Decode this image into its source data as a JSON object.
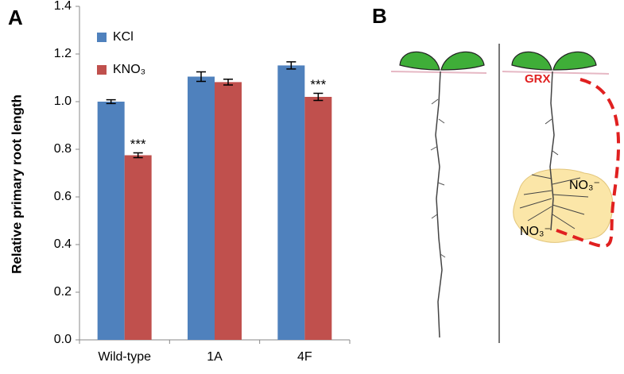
{
  "panels": [
    "A",
    "B"
  ],
  "chart_data": {
    "type": "bar",
    "y_label": "Relative primary root length",
    "categories": [
      "Wild-type",
      "1A",
      "4F"
    ],
    "series": [
      {
        "name": "KCl",
        "color": "#4f81bd",
        "values": [
          1.0,
          1.105,
          1.152
        ],
        "errors": [
          0.008,
          0.02,
          0.015
        ]
      },
      {
        "name": "KNO₃",
        "color": "#c0504d",
        "values": [
          0.775,
          1.082,
          1.02
        ],
        "errors": [
          0.01,
          0.012,
          0.015
        ]
      }
    ],
    "annotations": [
      {
        "text": "***",
        "category": "Wild-type",
        "series": "KNO₃"
      },
      {
        "text": "***",
        "category": "4F",
        "series": "KNO₃"
      }
    ],
    "ylim": [
      0,
      1.4
    ],
    "yticks": [
      {
        "value": 0,
        "label": "0.0"
      },
      0.2,
      0.4,
      0.6,
      0.8,
      {
        "value": 1,
        "label": "1.0"
      },
      1.2,
      1.4
    ],
    "grid": false
  },
  "diagram": {
    "labels": [
      "GRX",
      "NO₃⁻",
      "NO₃⁻"
    ]
  }
}
